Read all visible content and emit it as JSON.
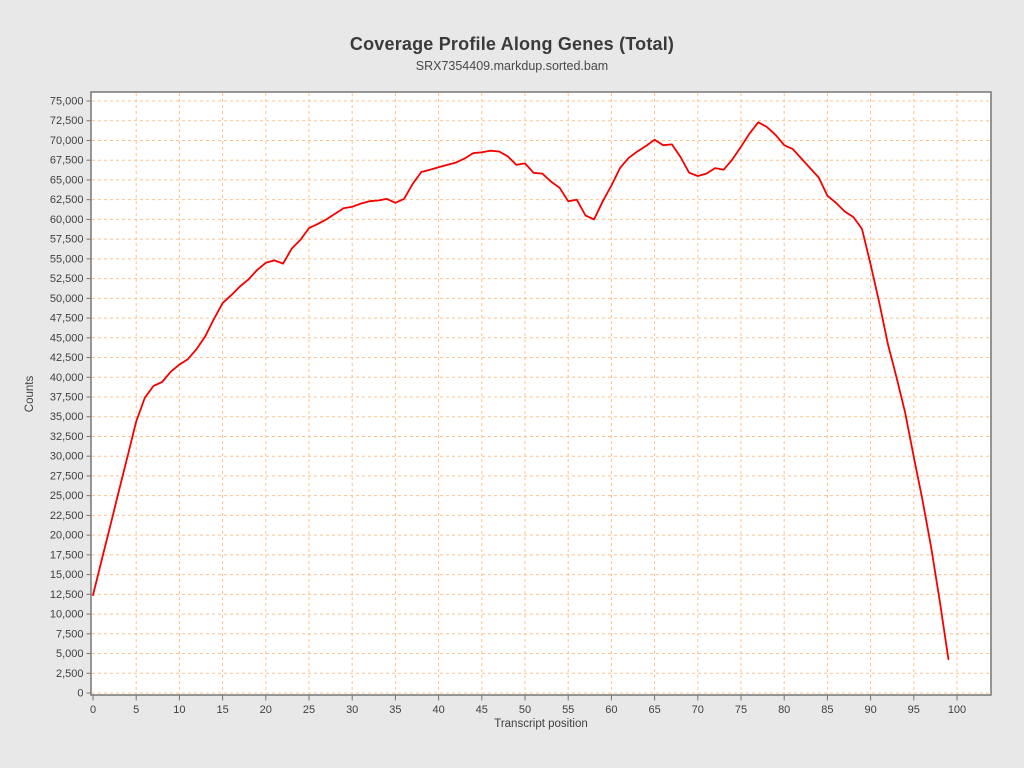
{
  "page": {
    "background_color": "#e8e8e8"
  },
  "chart_data": {
    "type": "line",
    "title": "Coverage Profile Along Genes (Total)",
    "subtitle": "SRX7354409.markdup.sorted.bam",
    "xlabel": "Transcript position",
    "ylabel": "Counts",
    "xlim": [
      0,
      104
    ],
    "ylim": [
      0,
      75000
    ],
    "grid": true,
    "grid_style": "dashed",
    "legend": "none",
    "x_ticks": [
      0,
      5,
      10,
      15,
      20,
      25,
      30,
      35,
      40,
      45,
      50,
      55,
      60,
      65,
      70,
      75,
      80,
      85,
      90,
      95,
      100
    ],
    "y_ticks": [
      0,
      2500,
      5000,
      7500,
      10000,
      12500,
      15000,
      17500,
      20000,
      22500,
      25000,
      27500,
      30000,
      32500,
      35000,
      37500,
      40000,
      42500,
      45000,
      47500,
      50000,
      52500,
      55000,
      57500,
      60000,
      62500,
      65000,
      67500,
      70000,
      72500,
      75000
    ],
    "colors": {
      "line": "#f40000",
      "grid": "#f9c48f",
      "plot_background": "#ffffff",
      "plot_border": "#767676",
      "tick": "#767676",
      "tick_label": "#3f3f3f",
      "title": "#3a3a3a",
      "subtitle": "#494949",
      "page_background": "#e8e8e8"
    },
    "series": [
      {
        "name": "SRX7354409.markdup.sorted.bam",
        "color": "#f40000",
        "x": [
          0,
          1,
          2,
          3,
          4,
          5,
          6,
          7,
          8,
          9,
          10,
          11,
          12,
          13,
          14,
          15,
          16,
          17,
          18,
          19,
          20,
          21,
          22,
          23,
          24,
          25,
          26,
          27,
          28,
          29,
          30,
          31,
          32,
          33,
          34,
          35,
          36,
          37,
          38,
          39,
          40,
          41,
          42,
          43,
          44,
          45,
          46,
          47,
          48,
          49,
          50,
          51,
          52,
          53,
          54,
          55,
          56,
          57,
          58,
          59,
          60,
          61,
          62,
          63,
          64,
          65,
          66,
          67,
          68,
          69,
          70,
          71,
          72,
          73,
          74,
          75,
          76,
          77,
          78,
          79,
          80,
          81,
          82,
          83,
          84,
          85,
          86,
          87,
          88,
          89,
          90,
          91,
          92,
          93,
          94,
          95,
          96,
          97,
          98,
          99
        ],
        "values": [
          12400,
          16800,
          21200,
          25600,
          30000,
          34400,
          37400,
          38900,
          39400,
          40700,
          41600,
          42300,
          43600,
          45200,
          47400,
          49400,
          50400,
          51500,
          52400,
          53600,
          54500,
          54800,
          54400,
          56300,
          57400,
          58900,
          59400,
          60000,
          60700,
          61400,
          61600,
          62000,
          62300,
          62400,
          62600,
          62100,
          62600,
          64500,
          66000,
          66300,
          66600,
          66900,
          67200,
          67700,
          68400,
          68500,
          68700,
          68600,
          68000,
          66900,
          67100,
          65900,
          65800,
          64800,
          64000,
          62300,
          62500,
          60500,
          60000,
          62300,
          64300,
          66500,
          67800,
          68600,
          69300,
          70100,
          69400,
          69500,
          67900,
          65900,
          65500,
          65800,
          66500,
          66300,
          67600,
          69200,
          70900,
          72300,
          71700,
          70700,
          69400,
          68900,
          67700,
          66500,
          65300,
          63000,
          62100,
          61000,
          60300,
          58800,
          54300,
          49500,
          44200,
          40000,
          35500,
          29900,
          24500,
          18500,
          11700,
          4300
        ]
      }
    ]
  }
}
